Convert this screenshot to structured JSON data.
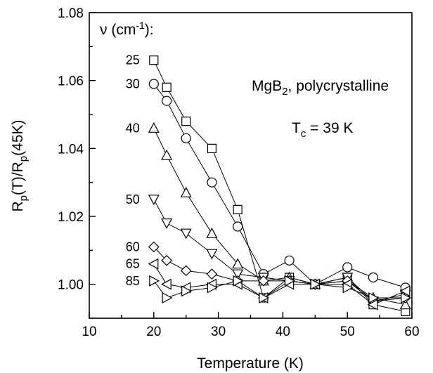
{
  "chart_data": {
    "type": "line",
    "xlabel": "Temperature (K)",
    "ylabel_parts": {
      "r1": "R",
      "s1": "p",
      "mid": "(T)/R",
      "s2": "p",
      "end": "(45K)"
    },
    "xlim": [
      10,
      60
    ],
    "ylim": [
      0.99,
      1.08
    ],
    "xticks": [
      10,
      20,
      30,
      40,
      50,
      60
    ],
    "yticks": [
      1.0,
      1.02,
      1.04,
      1.06,
      1.08
    ],
    "ytick_labels": [
      "1.00",
      "1.02",
      "1.04",
      "1.06",
      "1.08"
    ],
    "grid": false,
    "legend_header": {
      "nu": "ν",
      "open": " (cm",
      "sup": "-1",
      "close": "):"
    },
    "annotations": {
      "sample": {
        "pre": "MgB",
        "sub": "2",
        "post": ", polycrystalline"
      },
      "tc": {
        "pre": "T",
        "sub": "c",
        "post": " = 39 K"
      }
    },
    "series": [
      {
        "name": "25",
        "marker": "square",
        "x": [
          20,
          22,
          25,
          29,
          33,
          37,
          41,
          45,
          50,
          54,
          59
        ],
        "y": [
          1.066,
          1.058,
          1.048,
          1.04,
          1.022,
          0.996,
          1.002,
          1.0,
          1.002,
          0.994,
          0.992
        ]
      },
      {
        "name": "30",
        "marker": "circle",
        "x": [
          20,
          22,
          25,
          29,
          33,
          37,
          41,
          45,
          50,
          54,
          59
        ],
        "y": [
          1.059,
          1.054,
          1.043,
          1.03,
          1.017,
          1.003,
          1.007,
          1.0,
          1.005,
          1.002,
          0.999
        ]
      },
      {
        "name": "40",
        "marker": "triangle-up",
        "x": [
          20,
          22,
          25,
          29,
          33,
          37,
          41,
          45,
          50,
          54,
          59
        ],
        "y": [
          1.046,
          1.038,
          1.027,
          1.015,
          1.006,
          1.001,
          1.002,
          1.0,
          1.001,
          0.996,
          0.994
        ]
      },
      {
        "name": "50",
        "marker": "triangle-down",
        "x": [
          20,
          22,
          25,
          29,
          33,
          37,
          41,
          45,
          50,
          54,
          59
        ],
        "y": [
          1.025,
          1.018,
          1.015,
          1.009,
          1.003,
          1.002,
          1.001,
          1.0,
          1.002,
          0.995,
          0.997
        ]
      },
      {
        "name": "60",
        "marker": "diamond",
        "x": [
          20,
          22,
          25,
          29,
          33,
          37,
          41,
          45,
          50,
          54,
          59
        ],
        "y": [
          1.011,
          1.007,
          1.004,
          1.003,
          1.001,
          1.001,
          1.001,
          1.0,
          1.001,
          0.995,
          0.996
        ]
      },
      {
        "name": "65",
        "marker": "triangle-left",
        "x": [
          20,
          22,
          25,
          29,
          33,
          37,
          41,
          45,
          50,
          54,
          59
        ],
        "y": [
          1.006,
          1.0,
          0.999,
          1.0,
          1.0,
          0.996,
          1.0,
          1.0,
          1.0,
          0.994,
          0.998
        ]
      },
      {
        "name": "85",
        "marker": "triangle-right",
        "x": [
          20,
          22,
          25,
          29,
          33,
          37,
          41,
          45,
          50,
          54,
          59
        ],
        "y": [
          1.001,
          0.996,
          0.998,
          0.999,
          1.001,
          0.996,
          1.001,
          1.0,
          0.999,
          0.996,
          0.996
        ]
      }
    ]
  }
}
